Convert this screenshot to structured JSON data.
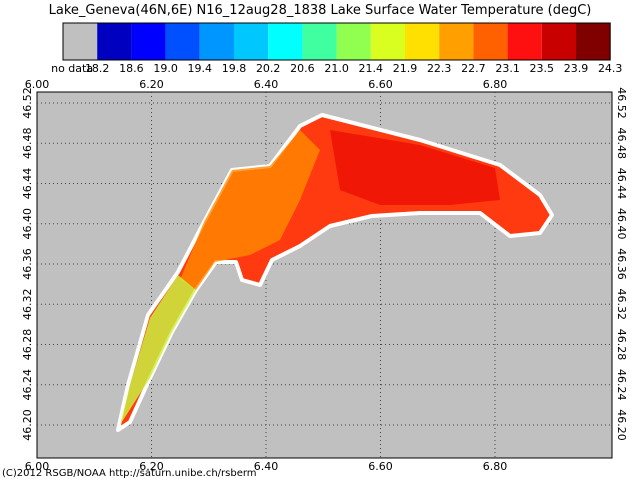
{
  "title": "Lake_Geneva(46N,6E) N16_12aug28_1838 Lake Surface Water Temperature (degC)",
  "legend": {
    "nodata_color": "#c0c0c0",
    "colors": [
      "#0000c0",
      "#0000ff",
      "#0050ff",
      "#0096ff",
      "#00c8ff",
      "#00ffff",
      "#40ffa0",
      "#90ff50",
      "#d8ff20",
      "#ffe000",
      "#ffa000",
      "#ff6000",
      "#ff1010",
      "#c80000",
      "#800000"
    ],
    "labels": [
      "no data",
      "18.2",
      "18.6",
      "19.0",
      "19.4",
      "19.8",
      "20.2",
      "20.6",
      "21.0",
      "21.4",
      "21.9",
      "22.3",
      "22.7",
      "23.1",
      "23.5",
      "23.9",
      "24.3"
    ]
  },
  "lon_ticks": [
    "6.00",
    "6.20",
    "6.40",
    "6.60",
    "6.80"
  ],
  "lat_ticks": [
    "46.52",
    "46.48",
    "46.44",
    "46.40",
    "46.36",
    "46.32",
    "46.28",
    "46.24",
    "46.20"
  ],
  "credit": "(C)2012 RSGB/NOAA http://saturn.unibe.ch/rsberm"
}
